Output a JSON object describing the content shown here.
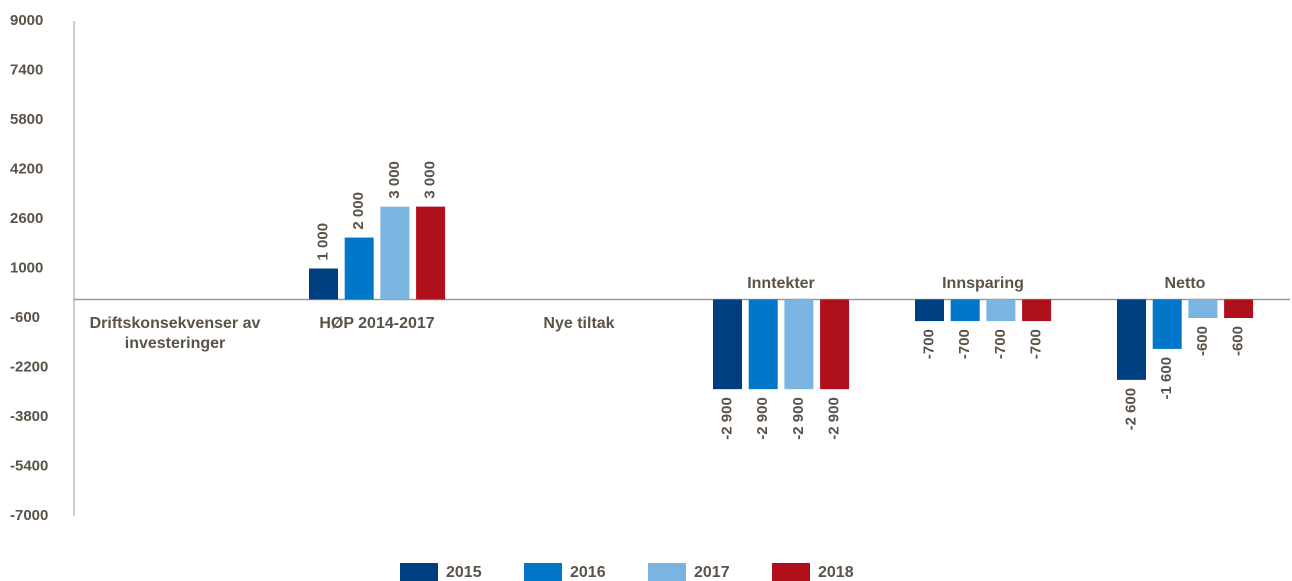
{
  "chart_data": {
    "type": "bar",
    "categories": [
      "Driftskonsekvenser av investeringer",
      "HØP 2014-2017",
      "Nye tiltak",
      "Inntekter",
      "Innsparing",
      "Netto"
    ],
    "series": [
      {
        "name": "2015",
        "color": "#003f7f",
        "values": [
          null,
          1000,
          null,
          -2900,
          -700,
          -2600
        ],
        "value_labels": [
          null,
          "1 000",
          null,
          "-2 900",
          "-700",
          "-2 600"
        ]
      },
      {
        "name": "2016",
        "color": "#0077c8",
        "values": [
          null,
          2000,
          null,
          -2900,
          -700,
          -1600
        ],
        "value_labels": [
          null,
          "2 000",
          null,
          "-2 900",
          "-700",
          "-1 600"
        ]
      },
      {
        "name": "2017",
        "color": "#7ab4e0",
        "values": [
          null,
          3000,
          null,
          -2900,
          -700,
          -600
        ],
        "value_labels": [
          null,
          "3 000",
          null,
          "-2 900",
          "-700",
          "-600"
        ]
      },
      {
        "name": "2018",
        "color": "#b0101c",
        "values": [
          null,
          3000,
          null,
          -2900,
          -700,
          -600
        ],
        "value_labels": [
          null,
          "3 000",
          null,
          "-2 900",
          "-700",
          "-600"
        ]
      }
    ],
    "ylim": [
      -7000,
      9000
    ],
    "yticks": [
      9000,
      7400,
      5800,
      4200,
      2600,
      1000,
      -600,
      -2200,
      -3800,
      -5400,
      -7000
    ],
    "legend": "bottom"
  }
}
